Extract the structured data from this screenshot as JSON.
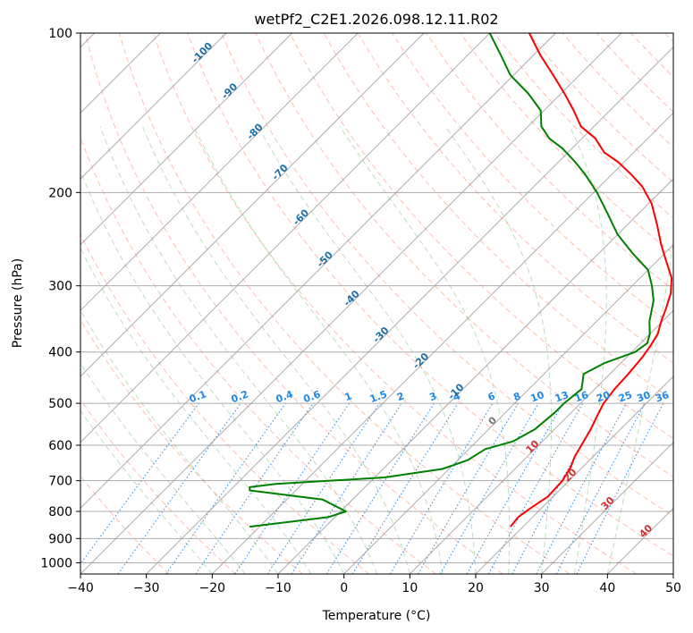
{
  "chart_data": {
    "type": "line",
    "title": "wetPf2_C2E1.2026.098.12.11.R02",
    "xlabel": "Temperature (°C)",
    "ylabel": "Pressure (hPa)",
    "xlim": [
      -40,
      50
    ],
    "ylim": [
      1050,
      100
    ],
    "y_scale": "log",
    "x_ticks": [
      -40,
      -30,
      -20,
      -10,
      0,
      10,
      20,
      30,
      40,
      50
    ],
    "y_ticks": [
      100,
      200,
      300,
      400,
      500,
      600,
      700,
      800,
      900,
      1000
    ],
    "grid": true,
    "skew": "skew-T",
    "series": [
      {
        "color": "#ff0000",
        "points": [
          [
            855,
            18.1
          ],
          [
            820,
            17.8
          ],
          [
            790,
            18.3
          ],
          [
            750,
            19.2
          ],
          [
            700,
            19.0
          ],
          [
            660,
            18.2
          ],
          [
            630,
            17.2
          ],
          [
            600,
            16.5
          ],
          [
            560,
            15.5
          ],
          [
            530,
            14.5
          ],
          [
            500,
            13.5
          ],
          [
            470,
            13.0
          ],
          [
            440,
            12.8
          ],
          [
            410,
            12.4
          ],
          [
            390,
            11.9
          ],
          [
            370,
            11.2
          ],
          [
            350,
            9.8
          ],
          [
            330,
            8.5
          ],
          [
            310,
            7.0
          ],
          [
            290,
            4.8
          ],
          [
            270,
            1.5
          ],
          [
            250,
            -2.0
          ],
          [
            230,
            -5.5
          ],
          [
            210,
            -9.5
          ],
          [
            195,
            -13.5
          ],
          [
            185,
            -17.0
          ],
          [
            175,
            -21.0
          ],
          [
            168,
            -24.5
          ],
          [
            158,
            -28.0
          ],
          [
            150,
            -32.0
          ],
          [
            140,
            -35.5
          ],
          [
            130,
            -39.5
          ],
          [
            120,
            -44.0
          ],
          [
            110,
            -49.0
          ],
          [
            100,
            -54.0
          ]
        ]
      },
      {
        "color": "#008000",
        "points": [
          [
            855,
            -21.5
          ],
          [
            820,
            -11.0
          ],
          [
            800,
            -9.2
          ],
          [
            760,
            -14.5
          ],
          [
            730,
            -27.0
          ],
          [
            720,
            -27.5
          ],
          [
            710,
            -24.0
          ],
          [
            690,
            -8.5
          ],
          [
            665,
            -1.0
          ],
          [
            640,
            1.5
          ],
          [
            610,
            2.5
          ],
          [
            590,
            5.5
          ],
          [
            560,
            7.0
          ],
          [
            520,
            7.5
          ],
          [
            500,
            7.5
          ],
          [
            470,
            8.0
          ],
          [
            440,
            6.0
          ],
          [
            420,
            7.5
          ],
          [
            400,
            10.5
          ],
          [
            385,
            11.0
          ],
          [
            370,
            10.0
          ],
          [
            350,
            8.0
          ],
          [
            320,
            5.5
          ],
          [
            300,
            3.0
          ],
          [
            280,
            0.0
          ],
          [
            260,
            -5.0
          ],
          [
            240,
            -10.0
          ],
          [
            220,
            -14.5
          ],
          [
            200,
            -19.5
          ],
          [
            185,
            -24.0
          ],
          [
            175,
            -27.5
          ],
          [
            165,
            -31.5
          ],
          [
            158,
            -35.0
          ],
          [
            150,
            -38.0
          ],
          [
            140,
            -40.5
          ],
          [
            130,
            -45.0
          ],
          [
            120,
            -50.5
          ],
          [
            110,
            -55.0
          ],
          [
            100,
            -60.0
          ]
        ]
      }
    ],
    "isotherm_labels": [
      "-100",
      "-90",
      "-80",
      "-70",
      "-60",
      "-50",
      "-40",
      "-30",
      "-20",
      "-10",
      "0",
      "10",
      "20",
      "30",
      "40"
    ],
    "mixing_ratio_labels": [
      "0.1",
      "0.2",
      "0.4",
      "0.6",
      "1",
      "1.5",
      "2",
      "3",
      "4",
      "6",
      "8",
      "10",
      "13",
      "16",
      "20",
      "25",
      "30",
      "36"
    ]
  }
}
